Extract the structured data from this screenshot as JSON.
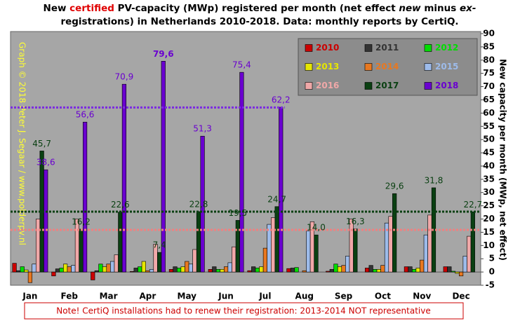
{
  "chart_data": {
    "type": "bar",
    "title_lines": [
      [
        "New ",
        "certified",
        " PV-capacity (MWp) registered per month (net effect ",
        "new",
        " minus ",
        "ex-"
      ],
      [
        "registrations) in Netherlands 2010-2018. Data: monthly reports by CertiQ."
      ]
    ],
    "y_label": "New capacity per month (MWp, net effect)",
    "watermark": "Graph © 2018 Peter J. Segaar / www.polderpv.nl",
    "note": "Note! CertiQ installations  had to renew their registration: 2013-2014  NOT representative",
    "categories": [
      "Jan",
      "Feb",
      "Mar",
      "Apr",
      "May",
      "Jun",
      "Jul",
      "Aug",
      "Sep",
      "Oct",
      "Nov",
      "Dec"
    ],
    "series": [
      {
        "name": "2010",
        "color": "#cc0000",
        "values": [
          3.3,
          -1.5,
          -3,
          0.2,
          1,
          1,
          0.5,
          1.3,
          0.3,
          1.5,
          2,
          2
        ]
      },
      {
        "name": "2011",
        "color": "#333333",
        "values": [
          0.5,
          1.2,
          0.5,
          1.5,
          2,
          2,
          2,
          1.5,
          1,
          2.5,
          2,
          2
        ]
      },
      {
        "name": "2012",
        "color": "#00dd00",
        "values": [
          2,
          1.5,
          3,
          2,
          1.5,
          1,
          1.5,
          1.7,
          3,
          1,
          1,
          0.3
        ]
      },
      {
        "name": "2013",
        "color": "#e6e600",
        "values": [
          0.8,
          3,
          2,
          4,
          2,
          1,
          2,
          0,
          2,
          1,
          1.5,
          -0.5
        ]
      },
      {
        "name": "2014",
        "color": "#e87820",
        "values": [
          -4,
          2,
          3,
          0.5,
          4,
          2,
          9,
          0.5,
          2.5,
          2.5,
          4.5,
          -1.5
        ]
      },
      {
        "name": "2015",
        "color": "#9dbbea",
        "values": [
          3,
          2.5,
          4,
          1,
          3,
          3.5,
          18,
          15.5,
          6,
          18.5,
          14,
          6
        ]
      },
      {
        "name": "2016",
        "color": "#f0a8a8",
        "values": [
          20,
          20,
          6.5,
          10.5,
          8.5,
          9.5,
          20.5,
          19,
          20,
          21,
          21.5,
          13.5
        ]
      },
      {
        "name": "2017",
        "color": "#0a4012",
        "values": [
          45.7,
          16.2,
          22.6,
          7.4,
          22.8,
          19.5,
          24.7,
          14.0,
          16.3,
          29.6,
          31.8,
          22.7
        ],
        "value_labels": [
          "45,7",
          "16,2",
          "22,6",
          "7,4",
          "22,8",
          "19,5",
          "24,7",
          "14,0",
          "16,3",
          "29,6",
          "31,8",
          "22,7"
        ]
      },
      {
        "name": "2018",
        "color": "#6a00d0",
        "values": [
          38.6,
          56.6,
          70.9,
          79.6,
          51.3,
          75.4,
          62.2,
          null,
          null,
          null,
          null,
          null
        ],
        "value_labels": [
          "38,6",
          "56,6",
          "70,9",
          "79,6",
          "51,3",
          "75,4",
          "62,2",
          null,
          null,
          null,
          null,
          null
        ]
      }
    ],
    "label_series": [
      7,
      8
    ],
    "reference_lines": [
      {
        "value": 62.1,
        "color": "#7b2be0",
        "series": 8
      },
      {
        "value": 22.8,
        "color": "#0a4012",
        "series": 7
      },
      {
        "value": 15.9,
        "color": "#f08080",
        "series": 6
      }
    ],
    "ylim": [
      -5,
      90
    ],
    "yticks": [
      -5,
      0,
      5,
      10,
      15,
      20,
      25,
      30,
      35,
      40,
      45,
      50,
      55,
      60,
      65,
      70,
      75,
      80,
      85,
      90
    ],
    "legend": "upper right"
  }
}
